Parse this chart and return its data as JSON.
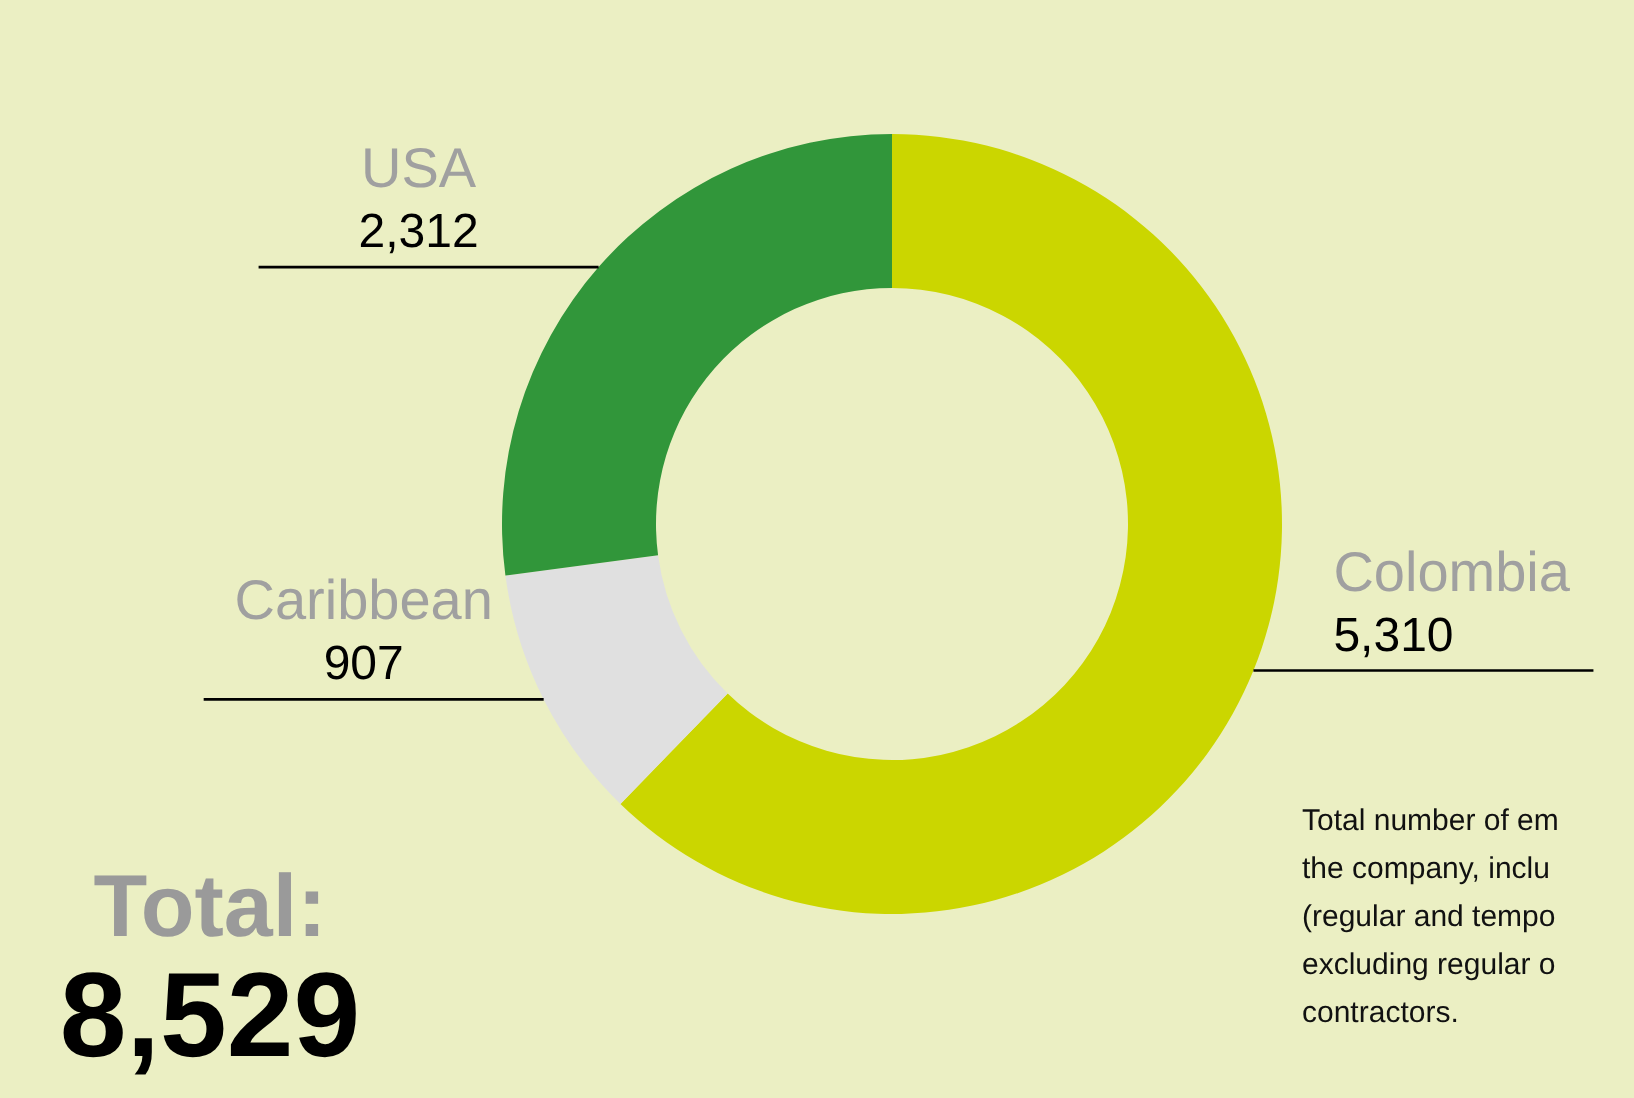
{
  "chart_data": {
    "type": "donut",
    "title": "Total:",
    "subtitle": "8,529",
    "categories": [
      "Colombia",
      "Caribbean",
      "USA"
    ],
    "values": [
      5310,
      907,
      2312
    ],
    "colors": [
      "#cbd600",
      "#e0e0e0",
      "#31963a"
    ],
    "value_labels": [
      "5,310",
      "907",
      "2,312"
    ],
    "annotations": [
      "Total number of em",
      "the company, inclu",
      "(regular and tempo",
      "excluding regular o",
      "contractors."
    ]
  }
}
